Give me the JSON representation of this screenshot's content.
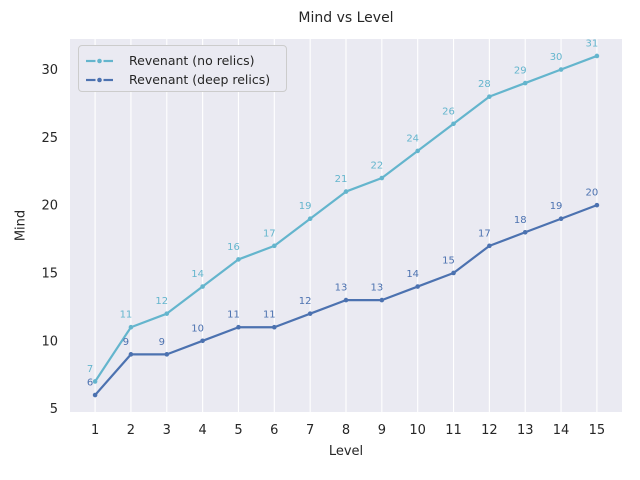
{
  "figure": {
    "title": "Mind vs Level",
    "background_color": "#ffffff",
    "axes_background_color": "#eaeaf2",
    "grid_color": "#ffffff",
    "text_color": "#262626"
  },
  "chart_data": {
    "type": "line",
    "title": "Mind vs Level",
    "xlabel": "Level",
    "ylabel": "Mind",
    "x": [
      1,
      2,
      3,
      4,
      5,
      6,
      7,
      8,
      9,
      10,
      11,
      12,
      13,
      14,
      15
    ],
    "series": [
      {
        "name": "Revenant (no relics)",
        "color": "#64b5cd",
        "values": [
          7,
          11,
          12,
          14,
          16,
          17,
          19,
          21,
          22,
          24,
          26,
          28,
          29,
          30,
          31
        ]
      },
      {
        "name": "Revenant (deep relics)",
        "color": "#4c72b0",
        "values": [
          6,
          9,
          9,
          10,
          11,
          11,
          12,
          13,
          13,
          14,
          15,
          17,
          18,
          19,
          20
        ]
      }
    ],
    "xticks": [
      1,
      2,
      3,
      4,
      5,
      6,
      7,
      8,
      9,
      10,
      11,
      12,
      13,
      14,
      15
    ],
    "yticks": [
      5,
      10,
      15,
      20,
      25,
      30
    ],
    "xlim": [
      0.3,
      15.7
    ],
    "ylim": [
      4.75,
      32.25
    ],
    "grid": "vertical-only",
    "legend_position": "upper-left",
    "point_labels": true,
    "marker": "dot",
    "line_style": "solid"
  }
}
